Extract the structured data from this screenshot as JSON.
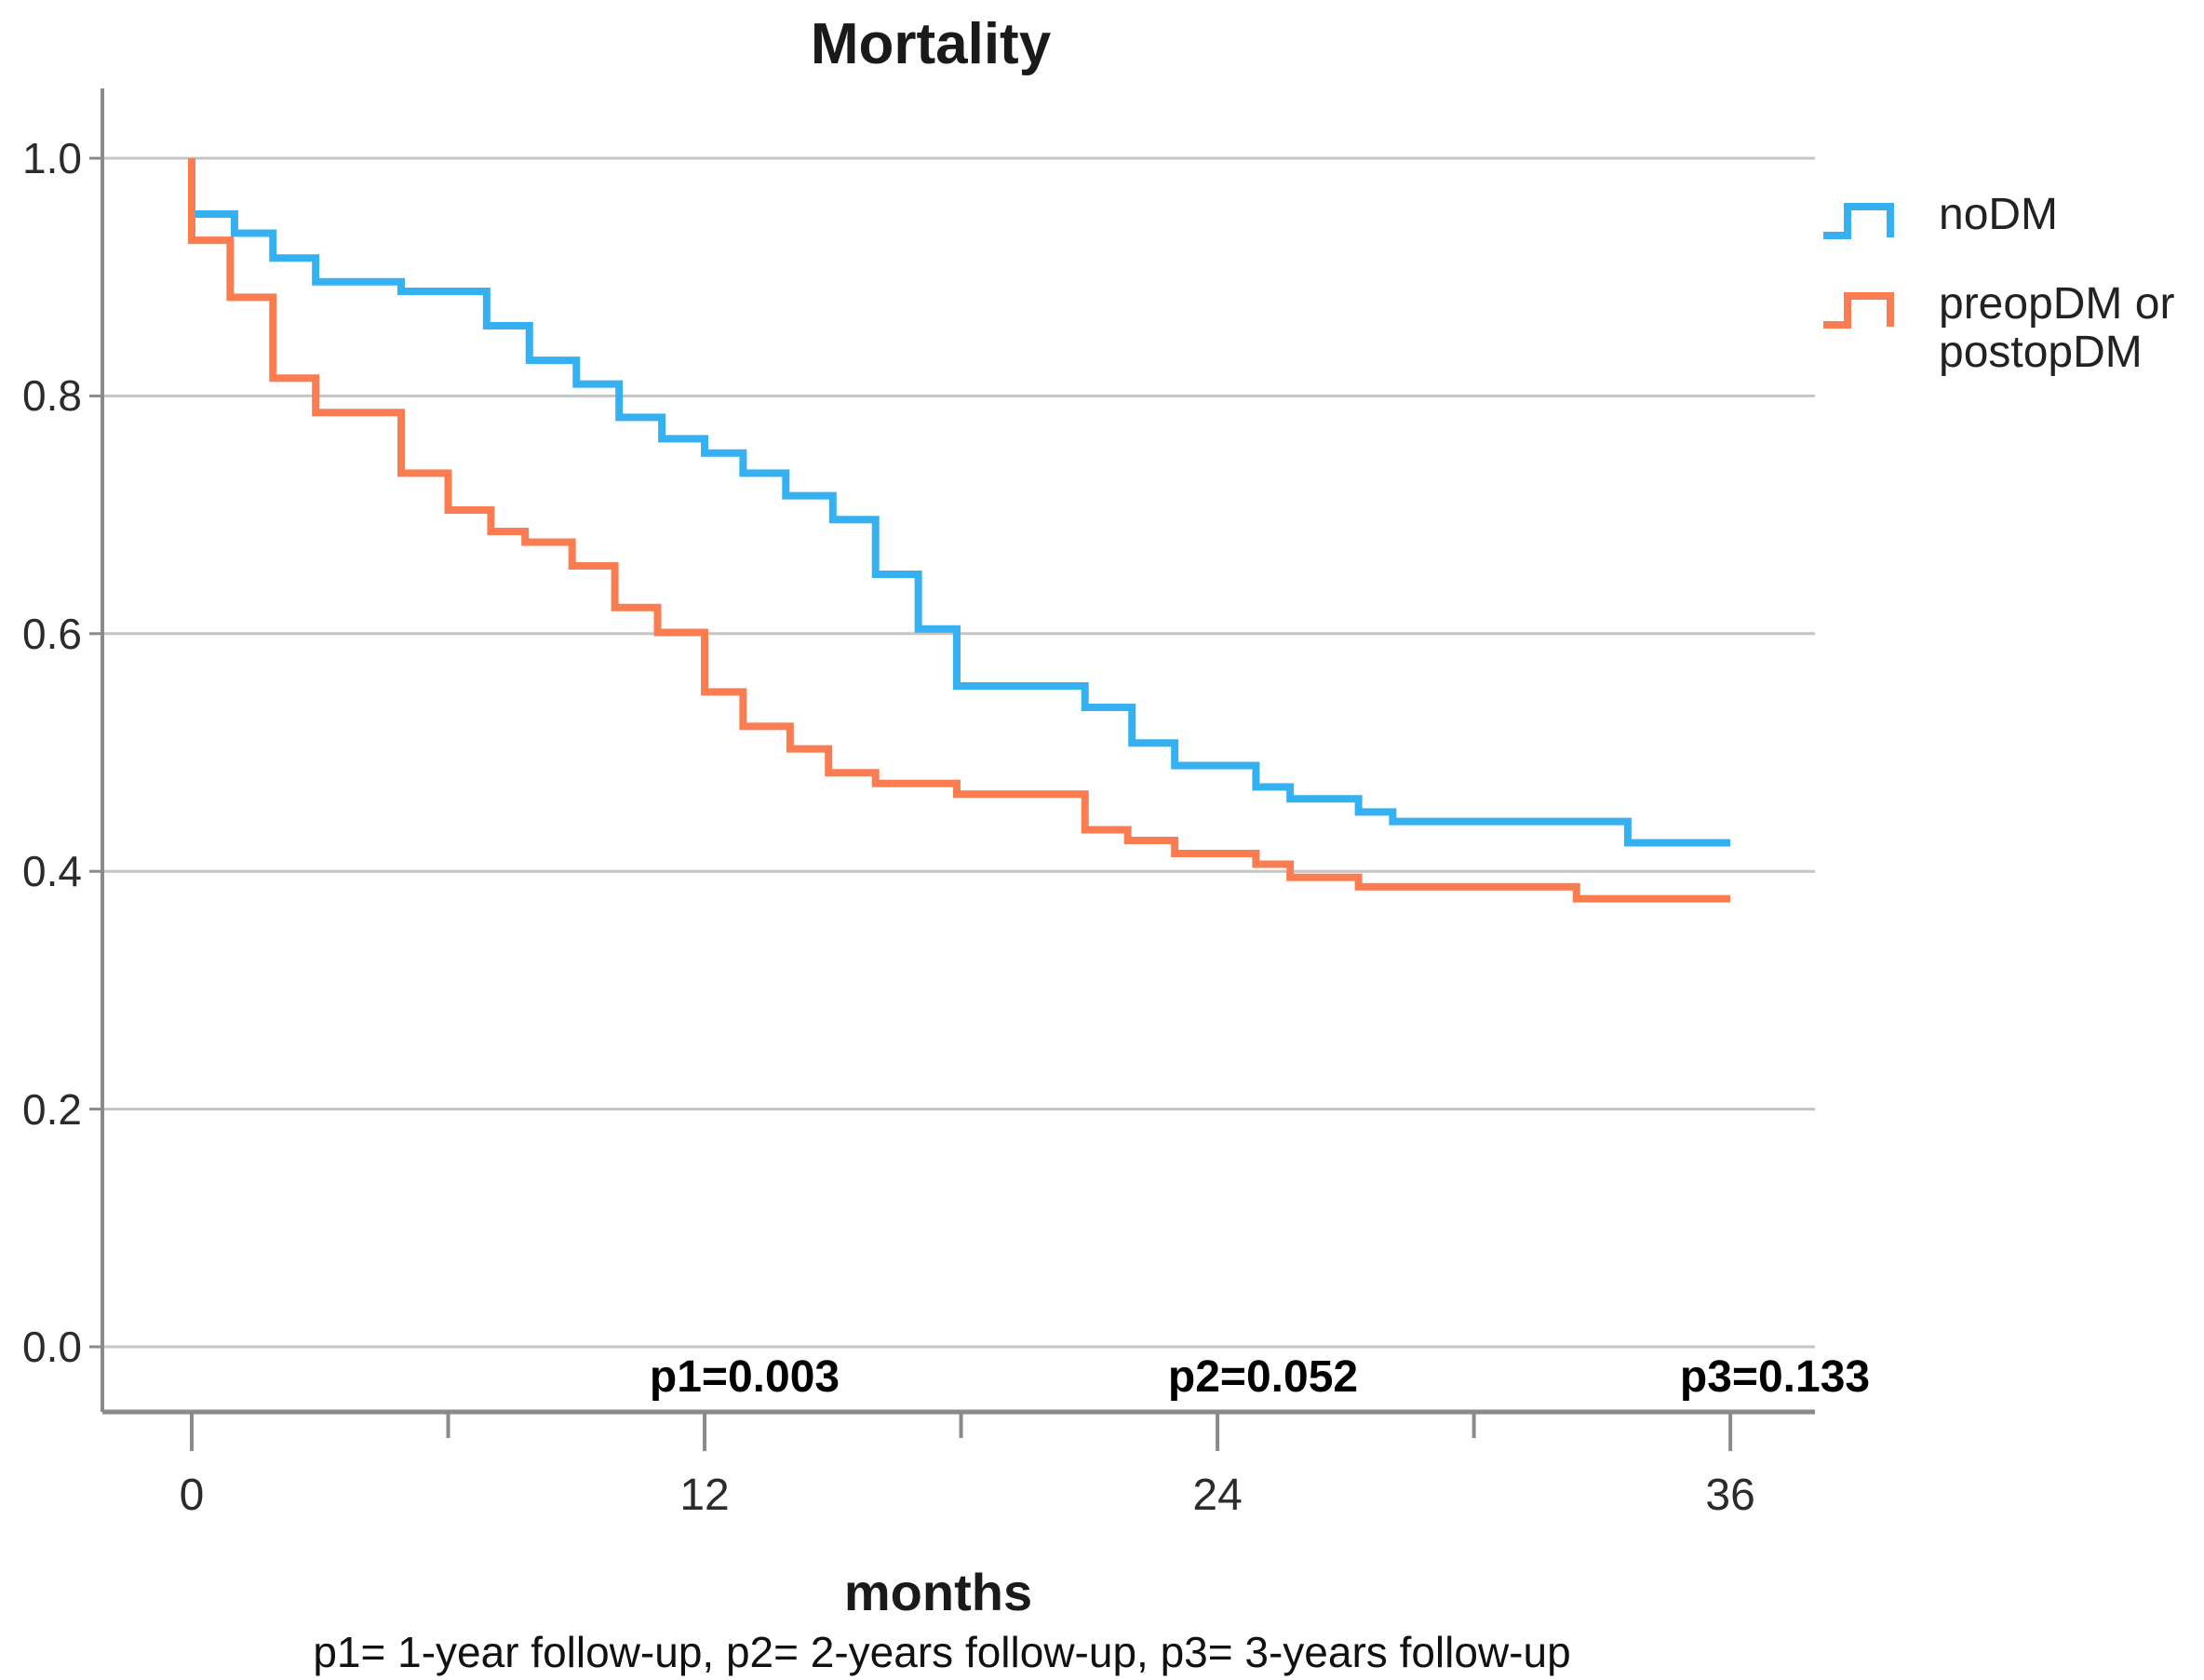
{
  "title": "Mortality",
  "xlabel": "months",
  "footnote": "p1= 1-year follow-up, p2= 2-years follow-up, p3= 3-years follow-up",
  "colors": {
    "noDM": "#35b1f2",
    "preop_postopDM": "#fa7d52",
    "gridline": "#c4c4c4",
    "axis": "#8a8a8a"
  },
  "legend": {
    "entries": [
      {
        "name": "noDM",
        "label_lines": [
          "noDM"
        ],
        "color": "#35b1f2"
      },
      {
        "name": "preopDM or postopDM",
        "label_lines": [
          "preopDM or",
          "postopDM"
        ],
        "color": "#fa7d52"
      }
    ]
  },
  "axes": {
    "x": {
      "tick_labels": [
        "0",
        "12",
        "24",
        "36"
      ],
      "tick_values": [
        0,
        12,
        24,
        36
      ],
      "minor_tick_values": [
        6,
        18,
        30
      ]
    },
    "y": {
      "tick_labels": [
        "1.0",
        "0.8",
        "0.6",
        "0.4",
        "0.2",
        "0.0"
      ],
      "tick_values": [
        1.0,
        0.8,
        0.6,
        0.4,
        0.2,
        0.0
      ]
    }
  },
  "chart_data": {
    "type": "line",
    "subtype": "kaplan-meier-step",
    "title": "Mortality",
    "xlabel": "months",
    "ylabel": "",
    "xlim": [
      0,
      36
    ],
    "ylim": [
      0.0,
      1.0
    ],
    "grid": "horizontal",
    "legend_position": "right",
    "series": [
      {
        "name": "noDM",
        "color": "#35b1f2",
        "start_value": 1.0,
        "end_time": 36,
        "drops": [
          [
            0,
            0.953
          ],
          [
            1,
            0.937
          ],
          [
            1.9,
            0.916
          ],
          [
            2.9,
            0.896
          ],
          [
            4.9,
            0.888
          ],
          [
            6.9,
            0.859
          ],
          [
            7.9,
            0.83
          ],
          [
            9,
            0.81
          ],
          [
            10,
            0.782
          ],
          [
            11,
            0.764
          ],
          [
            12,
            0.752
          ],
          [
            12.9,
            0.735
          ],
          [
            13.9,
            0.716
          ],
          [
            15,
            0.696
          ],
          [
            16,
            0.65
          ],
          [
            17,
            0.604
          ],
          [
            17.9,
            0.556
          ],
          [
            20.9,
            0.538
          ],
          [
            22,
            0.508
          ],
          [
            23,
            0.489
          ],
          [
            24.9,
            0.471
          ],
          [
            25.7,
            0.461
          ],
          [
            27.3,
            0.45
          ],
          [
            28.1,
            0.442
          ],
          [
            33.6,
            0.424
          ]
        ]
      },
      {
        "name": "preopDM or postopDM",
        "color": "#fa7d52",
        "start_value": 1.0,
        "end_time": 36,
        "drops": [
          [
            0,
            0.931
          ],
          [
            0.9,
            0.883
          ],
          [
            1.9,
            0.815
          ],
          [
            2.9,
            0.786
          ],
          [
            4.9,
            0.735
          ],
          [
            6,
            0.704
          ],
          [
            7,
            0.686
          ],
          [
            7.8,
            0.677
          ],
          [
            8.9,
            0.657
          ],
          [
            9.9,
            0.622
          ],
          [
            10.9,
            0.601
          ],
          [
            12,
            0.551
          ],
          [
            12.9,
            0.522
          ],
          [
            14,
            0.503
          ],
          [
            14.9,
            0.483
          ],
          [
            16,
            0.474
          ],
          [
            17.9,
            0.465
          ],
          [
            20.9,
            0.435
          ],
          [
            21.9,
            0.426
          ],
          [
            23,
            0.415
          ],
          [
            24.9,
            0.406
          ],
          [
            25.7,
            0.395
          ],
          [
            27.3,
            0.387
          ],
          [
            32.4,
            0.377
          ]
        ]
      }
    ],
    "annotations": [
      {
        "text": "p1=0.003",
        "x_months": 12.9
      },
      {
        "text": "p2=0.052",
        "x_months": 25.1
      },
      {
        "text": "p3=0.133",
        "x_months": 37.0
      }
    ]
  },
  "annotations": {
    "p1": "p1=0.003",
    "p2": "p2=0.052",
    "p3": "p3=0.133"
  }
}
